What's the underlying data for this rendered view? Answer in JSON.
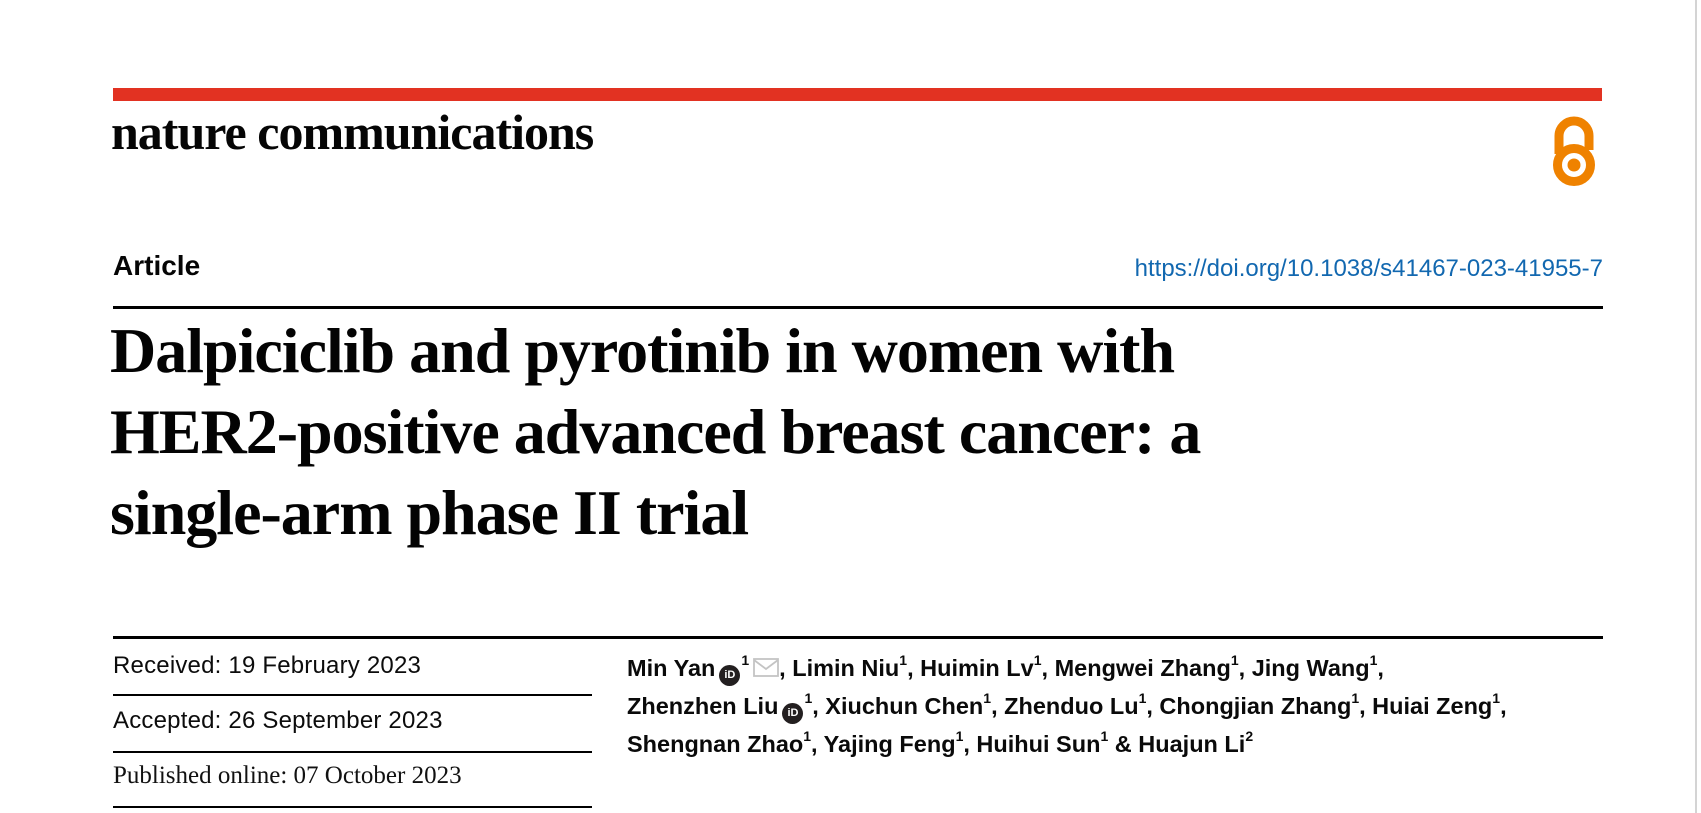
{
  "theme": {
    "brand_red": "#e23222",
    "open_access_orange": "#ef8200",
    "link_blue": "#1268b0",
    "text_black": "#0a0a0a",
    "rule_black": "#000000",
    "page_edge_gray": "#d4d4d4",
    "envelope_gray": "#c4c4c4",
    "orcid_badge_bg": "#231f20"
  },
  "masthead": {
    "brand": "nature communications",
    "open_access_icon": "open-access-lock"
  },
  "article_header": {
    "section_label": "Article",
    "doi": "https://doi.org/10.1038/s41467-023-41955-7",
    "title_lines": [
      "Dalpiciclib and pyrotinib in women with",
      "HER2-positive advanced breast cancer: a",
      "single-arm phase II trial"
    ]
  },
  "history": {
    "received": "Received: 19 February 2023",
    "accepted": "Accepted: 26 September 2023",
    "published_online": "Published online: 07 October 2023"
  },
  "icons": {
    "orcid_label": "iD"
  },
  "authors": {
    "lines": [
      {
        "parts": [
          {
            "text": "Min Yan"
          },
          {
            "icon": "orcid"
          },
          {
            "sup": "1"
          },
          {
            "icon": "email"
          },
          {
            "text": ", Limin Niu"
          },
          {
            "sup": "1"
          },
          {
            "text": ", Huimin Lv"
          },
          {
            "sup": "1"
          },
          {
            "text": ", Mengwei Zhang"
          },
          {
            "sup": "1"
          },
          {
            "text": ", Jing Wang"
          },
          {
            "sup": "1"
          },
          {
            "text": ","
          }
        ]
      },
      {
        "parts": [
          {
            "text": "Zhenzhen Liu"
          },
          {
            "icon": "orcid"
          },
          {
            "sup": "1"
          },
          {
            "text": ", Xiuchun Chen"
          },
          {
            "sup": "1"
          },
          {
            "text": ", Zhenduo Lu"
          },
          {
            "sup": "1"
          },
          {
            "text": ", Chongjian Zhang"
          },
          {
            "sup": "1"
          },
          {
            "text": ", Huiai Zeng"
          },
          {
            "sup": "1"
          },
          {
            "text": ","
          }
        ]
      },
      {
        "parts": [
          {
            "text": "Shengnan Zhao"
          },
          {
            "sup": "1"
          },
          {
            "text": ", Yajing Feng"
          },
          {
            "sup": "1"
          },
          {
            "text": ", Huihui Sun"
          },
          {
            "sup": "1"
          },
          {
            "text": " & Huajun Li"
          },
          {
            "sup": "2"
          }
        ]
      }
    ]
  }
}
